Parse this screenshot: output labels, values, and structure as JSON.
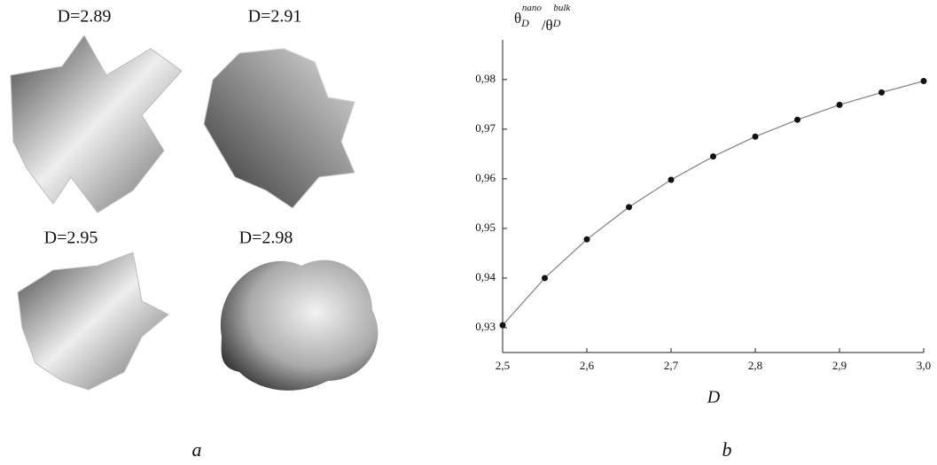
{
  "figure_a": {
    "label": "a",
    "images": [
      {
        "label": "D=2.89"
      },
      {
        "label": "D=2.91"
      },
      {
        "label": "D=2.95"
      },
      {
        "label": "D=2.98"
      }
    ]
  },
  "chart_data": {
    "type": "scatter",
    "panel_label": "b",
    "xlabel": "D",
    "ylabel_parts": [
      "θ",
      "D",
      "nano",
      "/θ",
      "D",
      "bulk"
    ],
    "x": [
      2.5,
      2.55,
      2.6,
      2.65,
      2.7,
      2.75,
      2.8,
      2.85,
      2.9,
      2.95,
      3.0
    ],
    "series": [
      {
        "color": "#111111",
        "line_color": "#888888",
        "values": [
          0.9305,
          0.94,
          0.9478,
          0.9543,
          0.9598,
          0.9645,
          0.9685,
          0.9719,
          0.9749,
          0.9774,
          0.9797
        ]
      }
    ],
    "xlim": [
      2.5,
      3.0
    ],
    "ylim": [
      0.925,
      0.988
    ],
    "xticks": [
      {
        "value": 2.5,
        "label": "2,5"
      },
      {
        "value": 2.6,
        "label": "2,6"
      },
      {
        "value": 2.7,
        "label": "2,7"
      },
      {
        "value": 2.8,
        "label": "2,8"
      },
      {
        "value": 2.9,
        "label": "2,9"
      },
      {
        "value": 3.0,
        "label": "3,0"
      }
    ],
    "yticks": [
      {
        "value": 0.93,
        "label": "0,93"
      },
      {
        "value": 0.94,
        "label": "0,94"
      },
      {
        "value": 0.95,
        "label": "0,95"
      },
      {
        "value": 0.96,
        "label": "0,96"
      },
      {
        "value": 0.97,
        "label": "0,97"
      },
      {
        "value": 0.98,
        "label": "0,98"
      }
    ]
  }
}
